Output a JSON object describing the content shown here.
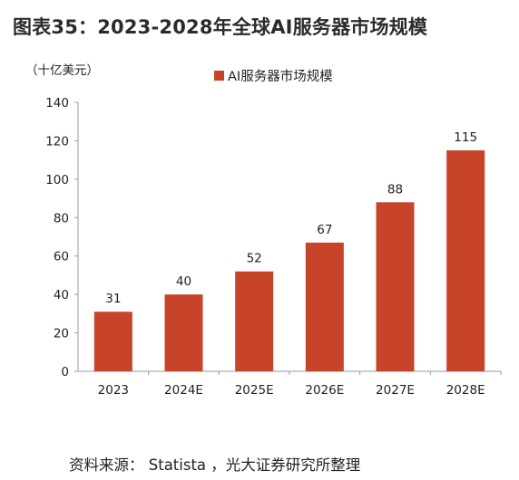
{
  "title": "图表35：2023-2028年全球AI服务器市场规模",
  "source": "资料来源：  Statista ，光大证券研究所整理",
  "colors": {
    "bar": "#C7442A",
    "axis": "#999999"
  },
  "chart_data": {
    "type": "bar",
    "unit_label": "（十亿美元）",
    "categories": [
      "2023",
      "2024E",
      "2025E",
      "2026E",
      "2027E",
      "2028E"
    ],
    "series": [
      {
        "name": "AI服务器市场规模",
        "values": [
          31,
          40,
          52,
          67,
          88,
          115
        ]
      }
    ],
    "data_labels": [
      "31",
      "40",
      "52",
      "67",
      "88",
      "115"
    ],
    "yticks": [
      "0",
      "20",
      "40",
      "60",
      "80",
      "100",
      "120",
      "140"
    ],
    "ylim": [
      0,
      140
    ],
    "legend_position": "top-center",
    "grid": false
  }
}
